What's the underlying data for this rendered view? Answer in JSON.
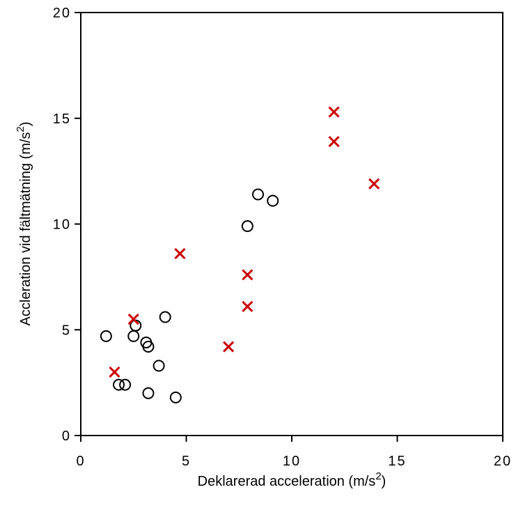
{
  "chart_data": {
    "type": "scatter",
    "xlabel": "Deklarerad acceleration (m/s2)",
    "ylabel": "Accleration vid fältmätning (m/s2)",
    "xlabel_parts": {
      "main": "Deklarerad  acceleration  (m/s",
      "sup": "2",
      "tail": ")"
    },
    "ylabel_parts": {
      "main": "Accleration  vid  fältmätning  (m/s",
      "sup": "2",
      "tail": ")"
    },
    "xlim": [
      0,
      20
    ],
    "ylim": [
      0,
      20
    ],
    "xticks": [
      0,
      5,
      10,
      15,
      20
    ],
    "yticks": [
      0,
      5,
      10,
      15,
      20
    ],
    "grid": false,
    "series": [
      {
        "marker": "circle",
        "color": "#000000",
        "points": [
          {
            "x": 1.2,
            "y": 4.7
          },
          {
            "x": 1.8,
            "y": 2.4
          },
          {
            "x": 2.1,
            "y": 2.4
          },
          {
            "x": 2.5,
            "y": 4.7
          },
          {
            "x": 2.6,
            "y": 5.2
          },
          {
            "x": 3.1,
            "y": 4.4
          },
          {
            "x": 3.2,
            "y": 4.2
          },
          {
            "x": 3.2,
            "y": 2.0
          },
          {
            "x": 3.7,
            "y": 3.3
          },
          {
            "x": 4.0,
            "y": 5.6
          },
          {
            "x": 4.5,
            "y": 1.8
          },
          {
            "x": 7.9,
            "y": 9.9
          },
          {
            "x": 8.4,
            "y": 11.4
          },
          {
            "x": 9.1,
            "y": 11.1
          }
        ]
      },
      {
        "marker": "x",
        "color": "#cc0000",
        "points": [
          {
            "x": 1.6,
            "y": 3.0
          },
          {
            "x": 2.5,
            "y": 5.5
          },
          {
            "x": 4.7,
            "y": 8.6
          },
          {
            "x": 7.0,
            "y": 4.2
          },
          {
            "x": 7.9,
            "y": 7.6
          },
          {
            "x": 7.9,
            "y": 6.1
          },
          {
            "x": 12.0,
            "y": 15.3
          },
          {
            "x": 12.0,
            "y": 13.9
          },
          {
            "x": 13.9,
            "y": 11.9
          }
        ]
      }
    ]
  }
}
